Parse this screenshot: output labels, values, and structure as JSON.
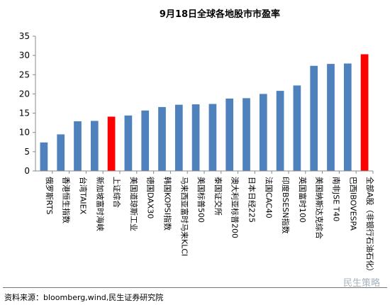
{
  "chart_data": {
    "type": "bar",
    "title": "9月18日全球各地股市市盈率",
    "categories": [
      "俄罗斯RTS",
      "香港恒生指数",
      "台湾TAIEX",
      "新加坡富时海峡",
      "上证综合",
      "美国道琼斯工业",
      "德国DAX30",
      "韩国KOPSI指数",
      "马来西亚富时马来KLCI",
      "美国标普500",
      "泰国证交所",
      "澳大利亚标普200",
      "日本日经225",
      "法国CAC40",
      "印度BSESN指数",
      "英国富时100",
      "美国纳斯达克综合",
      "南非JSE T40",
      "巴西IBOVESPA",
      "全部A股（非银行石油石化）"
    ],
    "values": [
      7.4,
      9.5,
      12.9,
      13.0,
      14.1,
      14.4,
      15.7,
      16.6,
      17.2,
      17.3,
      17.4,
      18.8,
      18.9,
      20.0,
      20.8,
      22.2,
      27.3,
      27.8,
      27.9,
      30.3
    ],
    "highlight": [
      4,
      19
    ],
    "ylim": [
      0,
      35
    ],
    "yticks": [
      0,
      5,
      10,
      15,
      20,
      25,
      30,
      35
    ],
    "grid": false,
    "legend": "none",
    "colors": {
      "bar": "#4f81bd",
      "highlight": "#ff0000",
      "axis": "#888888"
    }
  },
  "footer": {
    "source": "资料来源：bloomberg,wind,民生证券研究院",
    "watermark": "民生策略"
  }
}
